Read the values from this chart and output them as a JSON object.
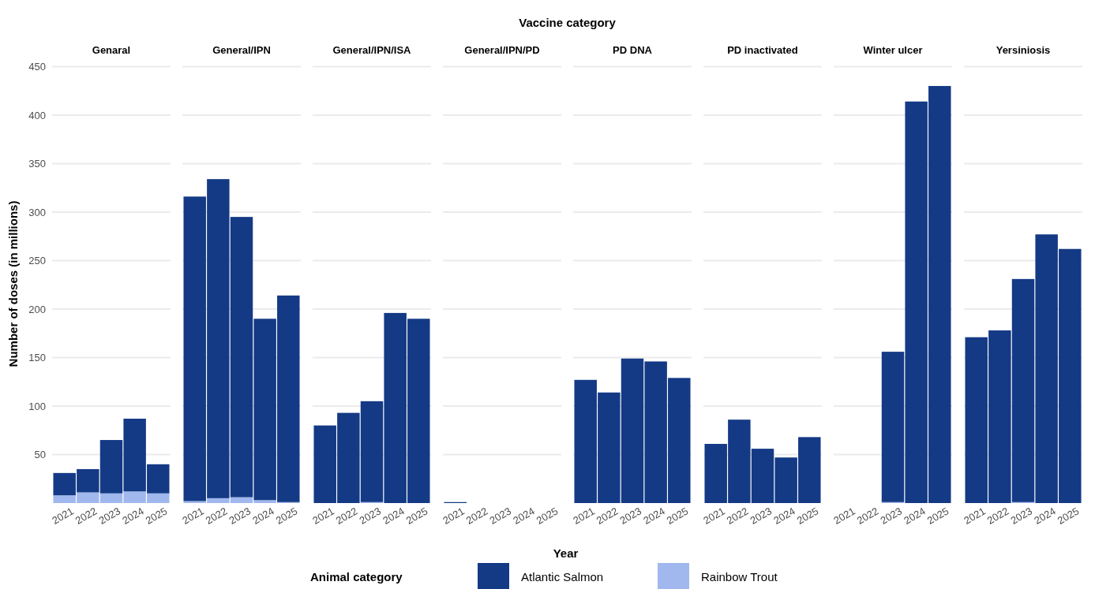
{
  "chart_data": [
    {
      "type": "bar",
      "stacked": true,
      "title": "Genaral",
      "annotations": [
        "Vaccine category"
      ],
      "ylabel": "Number of doses (in millions)",
      "legend_title": "Animal category",
      "legend": "bottom",
      "grid": "y",
      "categories": [
        "2021",
        "2022",
        "2023",
        "2024",
        "2025"
      ],
      "ylim": [
        0,
        452
      ],
      "yticks": [
        50,
        100,
        150,
        200,
        250,
        300,
        350,
        400,
        450
      ],
      "series": [
        {
          "name": "Rainbow Trout",
          "color": "#a0b8ee",
          "values": [
            8,
            11,
            10,
            12,
            10
          ]
        },
        {
          "name": "Atlantic Salmon",
          "color": "#143a85",
          "values": [
            23,
            24,
            55,
            75,
            30
          ]
        }
      ]
    },
    {
      "type": "bar",
      "stacked": true,
      "title": "General/IPN",
      "grid": "y",
      "tick_labels": "x",
      "categories": [
        "2021",
        "2022",
        "2023",
        "2024",
        "2025"
      ],
      "ylim": [
        0,
        452
      ],
      "yticks": [
        50,
        100,
        150,
        200,
        250,
        300,
        350,
        400,
        450
      ],
      "series": [
        {
          "color": "#a0b8ee",
          "values": [
            2,
            5,
            6,
            3,
            1
          ]
        },
        {
          "color": "#143a85",
          "values": [
            314,
            329,
            289,
            187,
            213
          ]
        }
      ]
    },
    {
      "type": "bar",
      "stacked": true,
      "title": "General/IPN/ISA",
      "grid": "y",
      "tick_labels": "x",
      "categories": [
        "2021",
        "2022",
        "2023",
        "2024",
        "2025"
      ],
      "ylim": [
        0,
        452
      ],
      "yticks": [
        50,
        100,
        150,
        200,
        250,
        300,
        350,
        400,
        450
      ],
      "series": [
        {
          "color": "#a0b8ee",
          "values": [
            null,
            null,
            1,
            null,
            null
          ]
        },
        {
          "color": "#143a85",
          "values": [
            80,
            93,
            104,
            196,
            190
          ]
        }
      ]
    },
    {
      "type": "bar",
      "stacked": true,
      "title": "General/IPN/PD",
      "xlabel": "Year",
      "grid": "y",
      "tick_labels": "x",
      "categories": [
        "2021",
        "2022",
        "2023",
        "2024",
        "2025"
      ],
      "ylim": [
        0,
        452
      ],
      "yticks": [
        50,
        100,
        150,
        200,
        250,
        300,
        350,
        400,
        450
      ],
      "series": [
        {
          "color": "#143a85",
          "values": [
            1,
            null,
            null,
            null,
            null
          ]
        }
      ]
    },
    {
      "type": "bar",
      "stacked": true,
      "title": "PD DNA",
      "grid": "y",
      "tick_labels": "x",
      "categories": [
        "2021",
        "2022",
        "2023",
        "2024",
        "2025"
      ],
      "ylim": [
        0,
        452
      ],
      "yticks": [
        50,
        100,
        150,
        200,
        250,
        300,
        350,
        400,
        450
      ],
      "series": [
        {
          "color": "#143a85",
          "values": [
            127,
            114,
            149,
            146,
            129
          ]
        }
      ]
    },
    {
      "type": "bar",
      "stacked": true,
      "title": "PD inactivated",
      "grid": "y",
      "tick_labels": "x",
      "categories": [
        "2021",
        "2022",
        "2023",
        "2024",
        "2025"
      ],
      "ylim": [
        0,
        452
      ],
      "yticks": [
        50,
        100,
        150,
        200,
        250,
        300,
        350,
        400,
        450
      ],
      "series": [
        {
          "color": "#143a85",
          "values": [
            61,
            86,
            56,
            47,
            68
          ]
        }
      ]
    },
    {
      "type": "bar",
      "stacked": true,
      "title": "Winter ulcer",
      "grid": "y",
      "tick_labels": "x",
      "categories": [
        "2021",
        "2022",
        "2023",
        "2024",
        "2025"
      ],
      "ylim": [
        0,
        452
      ],
      "yticks": [
        50,
        100,
        150,
        200,
        250,
        300,
        350,
        400,
        450
      ],
      "series": [
        {
          "color": "#a0b8ee",
          "values": [
            null,
            null,
            1,
            null,
            null
          ]
        },
        {
          "color": "#143a85",
          "values": [
            null,
            null,
            155,
            414,
            430
          ]
        }
      ]
    },
    {
      "type": "bar",
      "stacked": true,
      "title": "Yersiniosis",
      "grid": "y",
      "tick_labels": "x",
      "categories": [
        "2021",
        "2022",
        "2023",
        "2024",
        "2025"
      ],
      "ylim": [
        0,
        452
      ],
      "yticks": [
        50,
        100,
        150,
        200,
        250,
        300,
        350,
        400,
        450
      ],
      "series": [
        {
          "color": "#a0b8ee",
          "values": [
            null,
            null,
            1,
            null,
            null
          ]
        },
        {
          "color": "#143a85",
          "values": [
            171,
            178,
            230,
            277,
            262
          ]
        }
      ]
    }
  ]
}
